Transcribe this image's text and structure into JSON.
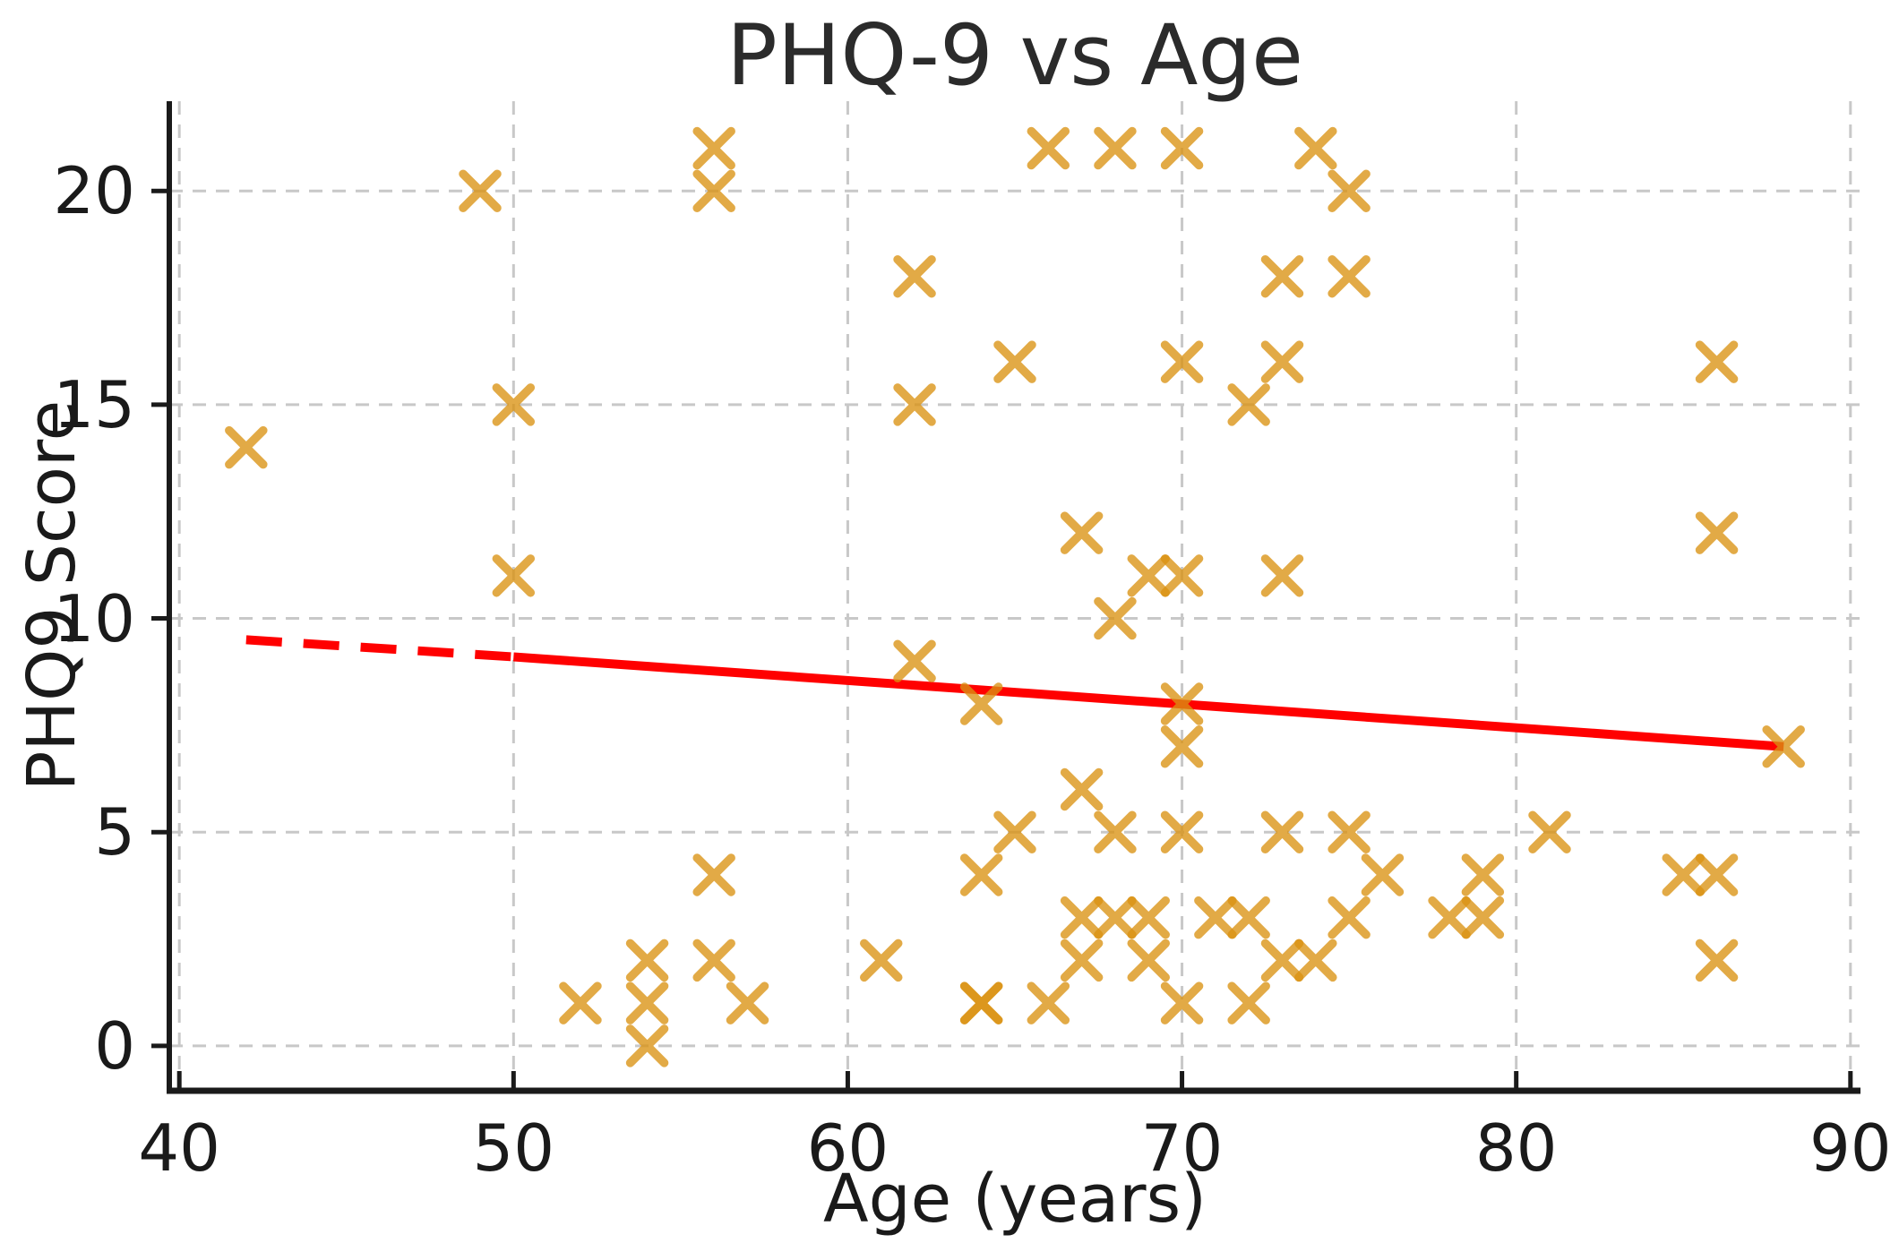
{
  "title": "PHQ-9 vs Age",
  "chart_data": {
    "type": "scatter",
    "title": "PHQ-9 vs Age",
    "xlabel": "Age (years)",
    "ylabel": "PHQ9 Score",
    "xlim": [
      39.7,
      90.3
    ],
    "ylim": [
      -1.05,
      22.1
    ],
    "x_ticks": [
      40,
      50,
      60,
      70,
      80,
      90
    ],
    "y_ticks": [
      0,
      5,
      10,
      15,
      20
    ],
    "grid": true,
    "legend": "none",
    "marker": "x",
    "marker_color": "#DA9212",
    "marker_opacity": 0.78,
    "grid_color": "#c8c8c8",
    "axis_color": "#1a1a1a",
    "trend_color": "#FF0000",
    "points": [
      [
        42,
        14
      ],
      [
        49,
        20
      ],
      [
        50,
        15
      ],
      [
        50,
        11
      ],
      [
        52,
        1
      ],
      [
        54,
        2
      ],
      [
        54,
        1
      ],
      [
        54,
        0
      ],
      [
        56,
        21
      ],
      [
        56,
        20
      ],
      [
        56,
        4
      ],
      [
        56,
        2
      ],
      [
        57,
        1
      ],
      [
        61,
        2
      ],
      [
        62,
        18
      ],
      [
        62,
        15
      ],
      [
        62,
        9
      ],
      [
        64,
        8
      ],
      [
        64,
        4
      ],
      [
        64,
        1
      ],
      [
        64,
        1
      ],
      [
        65,
        16
      ],
      [
        65,
        5
      ],
      [
        66,
        21
      ],
      [
        66,
        1
      ],
      [
        67,
        12
      ],
      [
        67,
        6
      ],
      [
        67,
        3
      ],
      [
        67,
        2
      ],
      [
        68,
        21
      ],
      [
        68,
        10
      ],
      [
        68,
        5
      ],
      [
        68,
        3
      ],
      [
        69,
        11
      ],
      [
        69,
        3
      ],
      [
        69,
        2
      ],
      [
        70,
        21
      ],
      [
        70,
        16
      ],
      [
        70,
        11
      ],
      [
        70,
        8
      ],
      [
        70,
        7
      ],
      [
        70,
        5
      ],
      [
        70,
        1
      ],
      [
        71,
        3
      ],
      [
        72,
        15
      ],
      [
        72,
        3
      ],
      [
        72,
        1
      ],
      [
        73,
        18
      ],
      [
        73,
        16
      ],
      [
        73,
        11
      ],
      [
        73,
        5
      ],
      [
        73,
        2
      ],
      [
        74,
        21
      ],
      [
        74,
        2
      ],
      [
        75,
        20
      ],
      [
        75,
        18
      ],
      [
        75,
        5
      ],
      [
        75,
        3
      ],
      [
        76,
        4
      ],
      [
        78,
        3
      ],
      [
        79,
        4
      ],
      [
        79,
        3
      ],
      [
        81,
        5
      ],
      [
        85,
        4
      ],
      [
        86,
        16
      ],
      [
        86,
        12
      ],
      [
        86,
        4
      ],
      [
        86,
        2
      ],
      [
        88,
        7
      ]
    ],
    "trend_line": {
      "style": "dashed-then-solid",
      "x_start": 42,
      "y_start": 9.5,
      "x_transition": 50,
      "y_transition": 9.1,
      "x_end": 88,
      "y_end": 7.0
    }
  }
}
